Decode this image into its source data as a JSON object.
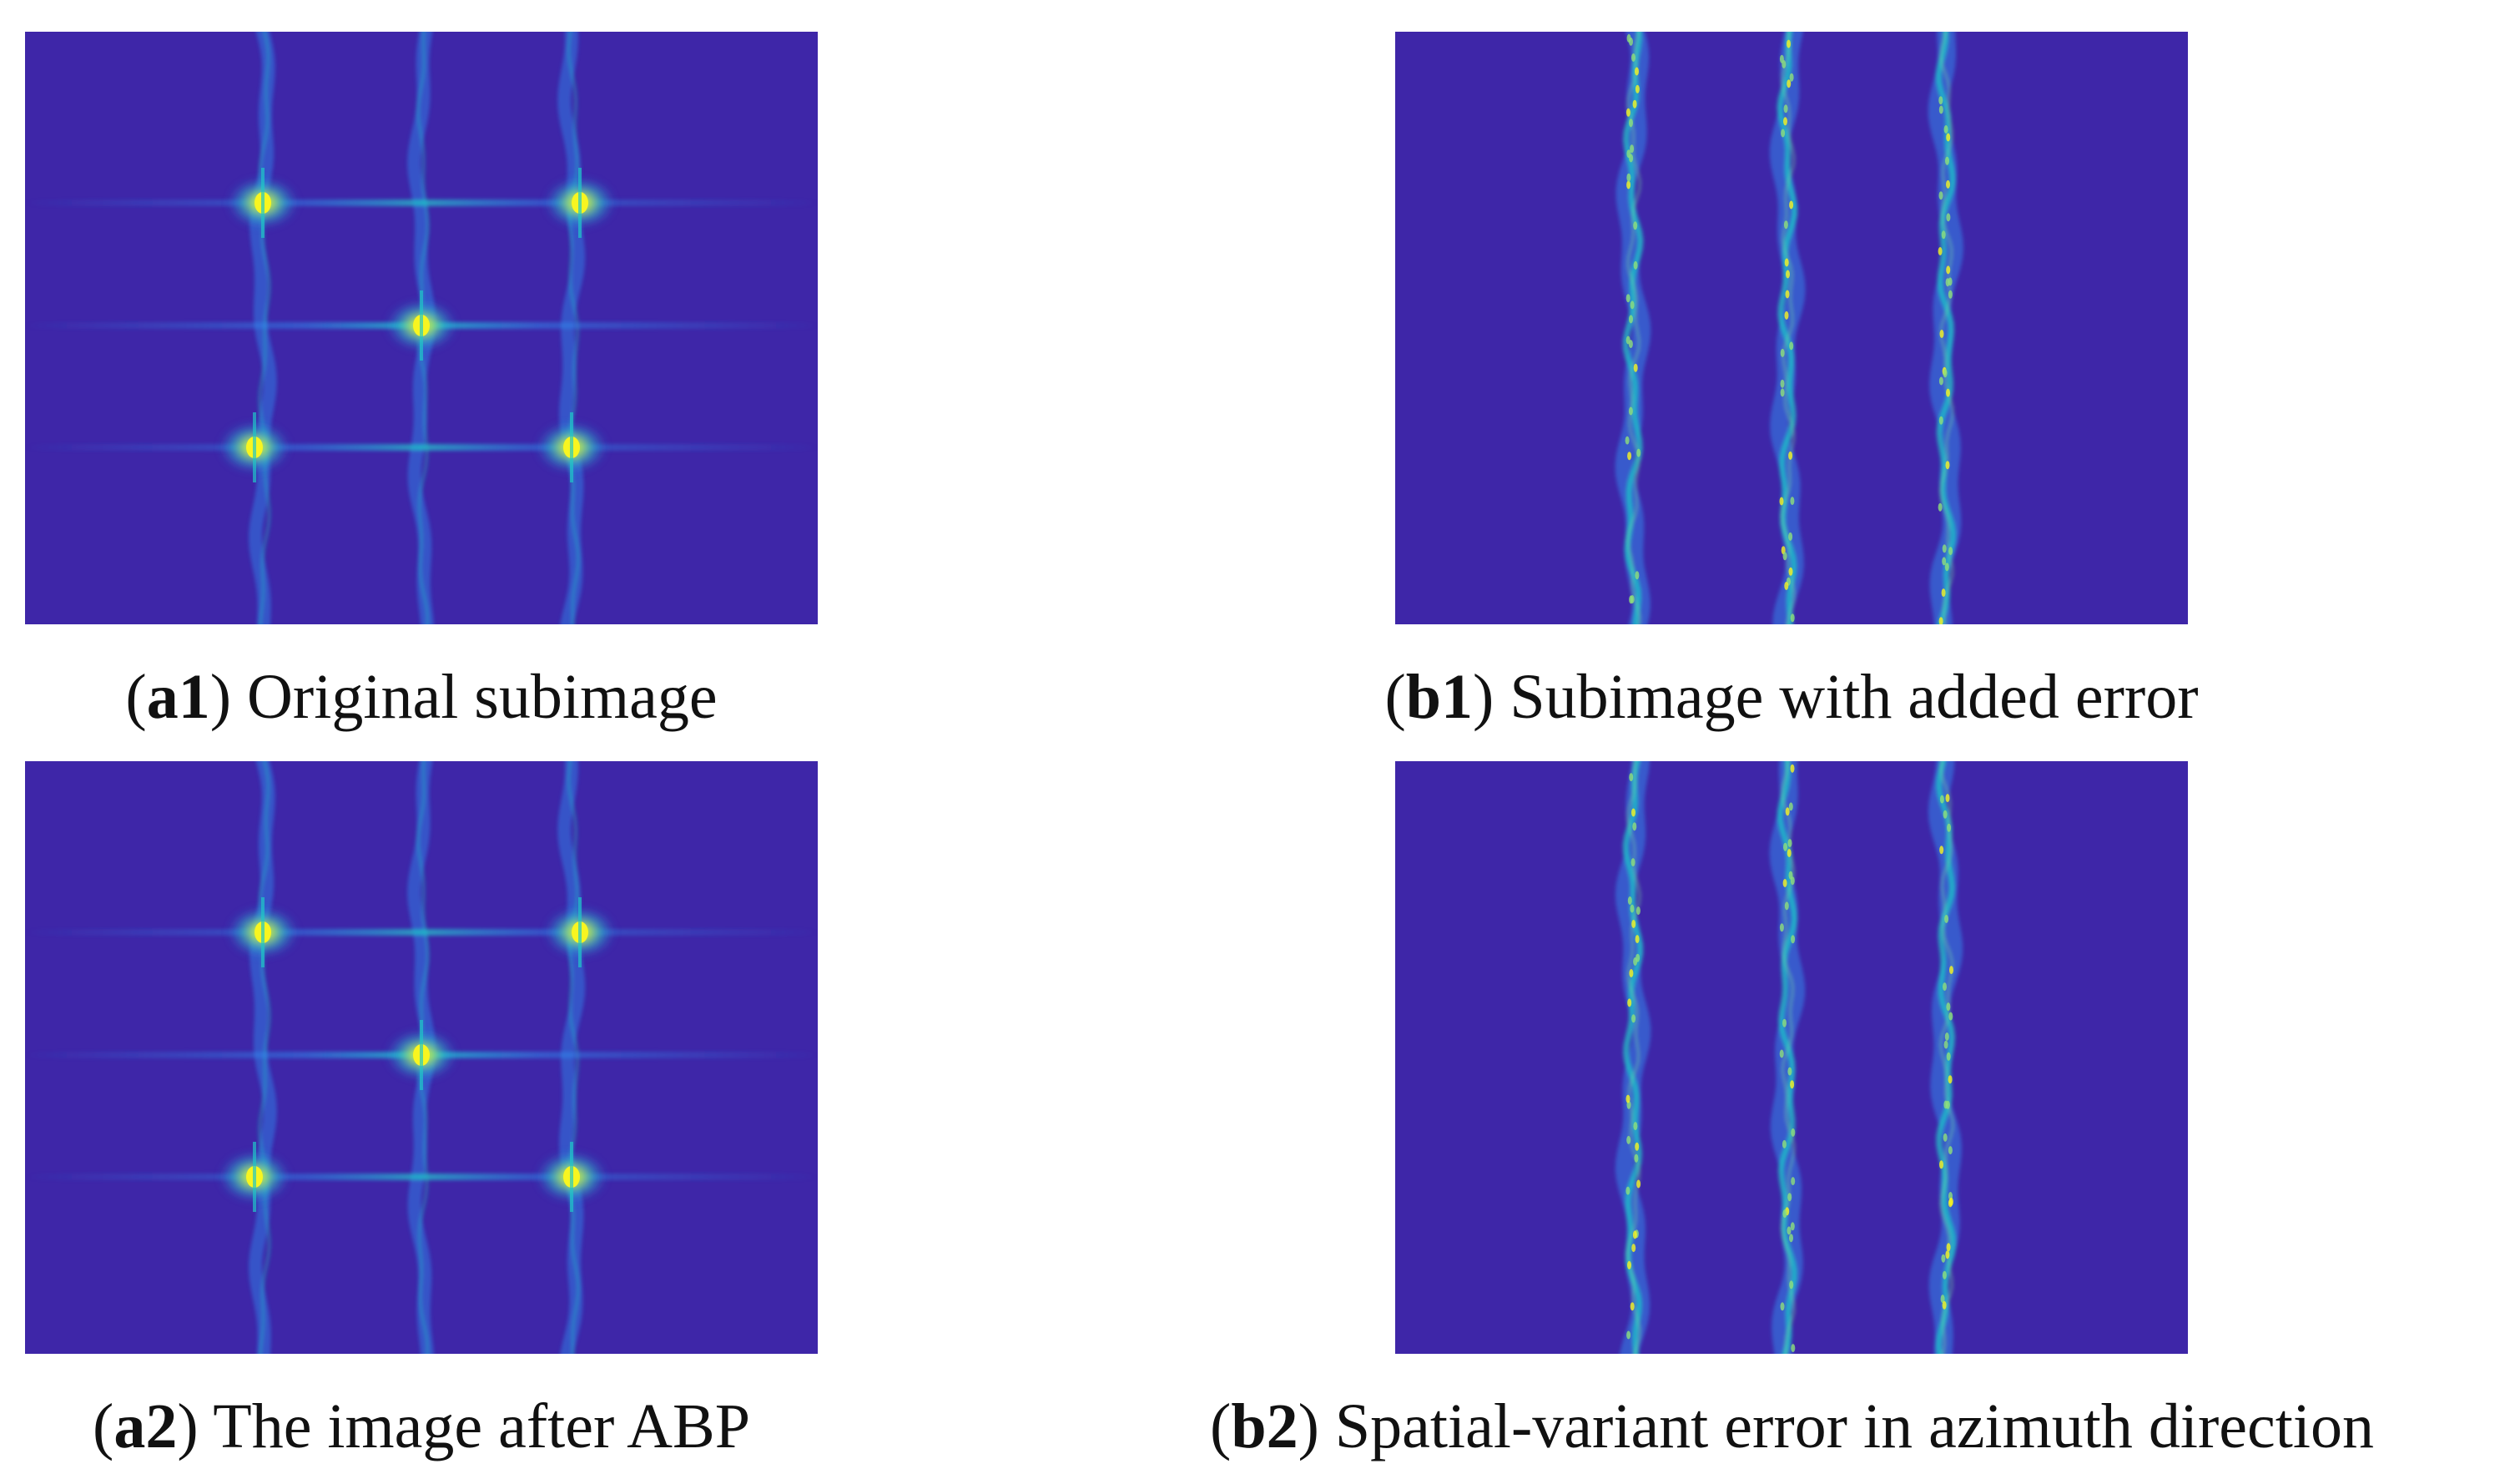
{
  "figure": {
    "panels": [
      {
        "id": "a1",
        "label": "a1",
        "caption": "Original subimage",
        "type": "point-targets"
      },
      {
        "id": "b1",
        "label": "b1",
        "caption": "Subimage with added error",
        "type": "defocused-streaks"
      },
      {
        "id": "a2",
        "label": "a2",
        "caption": "The image after ABP",
        "type": "point-targets"
      },
      {
        "id": "b2",
        "label": "b2",
        "caption": "Spatial-variant error in azimuth direction",
        "type": "defocused-streaks"
      }
    ],
    "colors": {
      "background": "#3e26a8",
      "sidelobe": "#2f8df0",
      "mid": "#1fc6c8",
      "peak": "#f8f520"
    }
  }
}
